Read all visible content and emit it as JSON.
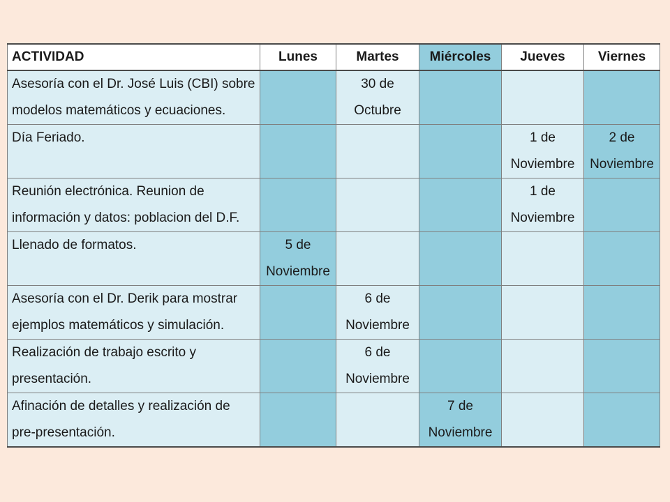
{
  "table": {
    "headers": [
      "ACTIVIDAD",
      "Lunes",
      "Martes",
      "Miércoles",
      "Jueves",
      "Viernes"
    ],
    "rows": [
      {
        "activity": "Asesoría con el Dr. José Luis (CBI) sobre modelos matemáticos y ecuaciones.",
        "lunes": "",
        "martes": "30 de Octubre",
        "miercoles": "",
        "jueves": "",
        "viernes": ""
      },
      {
        "activity": "Día Feriado.",
        "lunes": "",
        "martes": "",
        "miercoles": "",
        "jueves": "1 de Noviembre",
        "viernes": "2 de Noviembre"
      },
      {
        "activity": "Reunión electrónica. Reunion de información y datos: poblacion del D.F.",
        "lunes": "",
        "martes": "",
        "miercoles": "",
        "jueves": "1 de Noviembre",
        "viernes": ""
      },
      {
        "activity": "Llenado de formatos.",
        "lunes": "5 de Noviembre",
        "martes": "",
        "miercoles": "",
        "jueves": "",
        "viernes": ""
      },
      {
        "activity": "Asesoría con el Dr. Derik para mostrar ejemplos matemáticos y simulación.",
        "lunes": "",
        "martes": "6 de Noviembre",
        "miercoles": "",
        "jueves": "",
        "viernes": ""
      },
      {
        "activity": "Realización de trabajo escrito y presentación.",
        "lunes": "",
        "martes": "6 de Noviembre",
        "miercoles": "",
        "jueves": "",
        "viernes": ""
      },
      {
        "activity": "Afinación de detalles y realización de pre-presentación.",
        "lunes": "",
        "martes": "",
        "miercoles": "7 de Noviembre",
        "jueves": "",
        "viernes": ""
      }
    ]
  },
  "colors": {
    "background": "#fce9dc",
    "cell_dark": "#93cddd",
    "cell_light": "#dbeef4",
    "header": "#ffffff"
  }
}
